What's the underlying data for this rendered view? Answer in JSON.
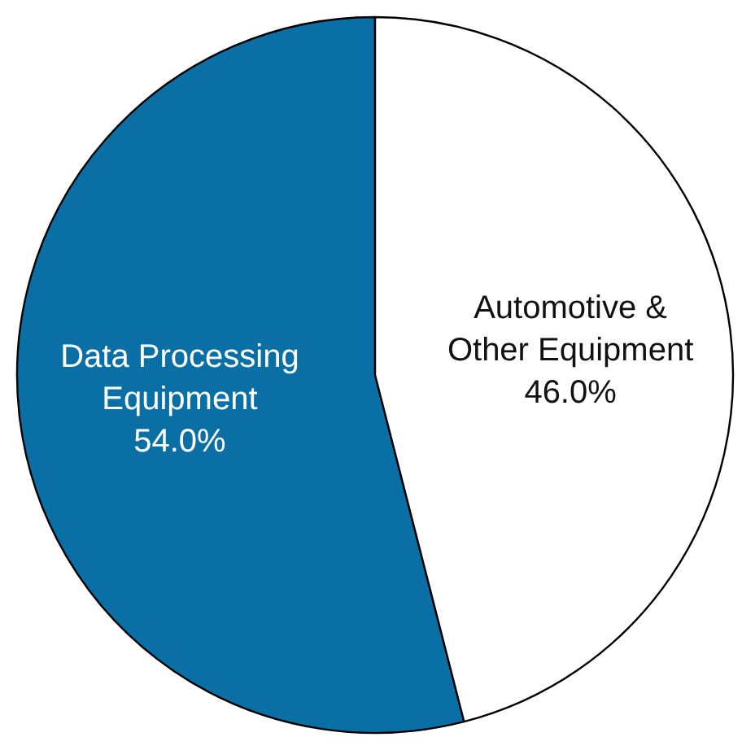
{
  "chart_data": {
    "type": "pie",
    "categories": [
      "Data Processing Equipment",
      "Automotive & Other Equipment"
    ],
    "values": [
      54.0,
      46.0
    ],
    "colors": [
      "#0a6fa5",
      "#ffffff"
    ],
    "value_labels": [
      "54.0%",
      "46.0%"
    ]
  }
}
